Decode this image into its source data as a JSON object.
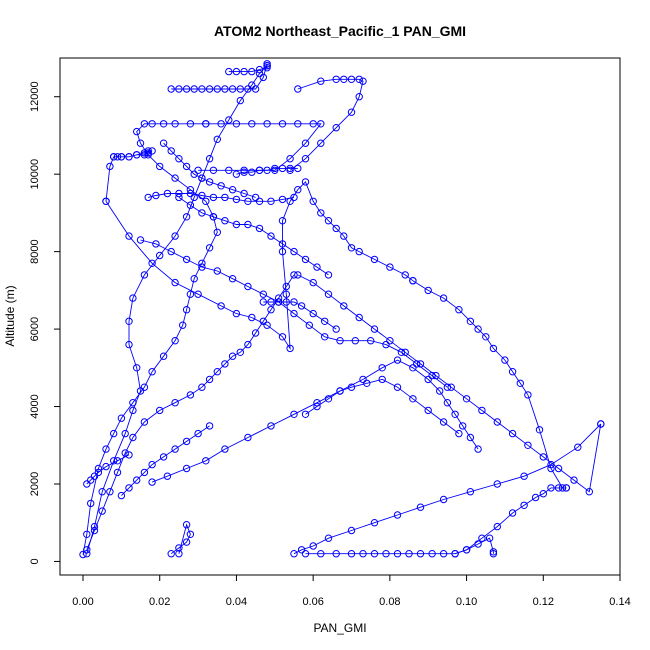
{
  "chart_data": {
    "type": "scatter",
    "title": "ATOM2 Northeast_Pacific_1 PAN_GMI",
    "xlabel": "PAN_GMI",
    "ylabel": "Altitude (m)",
    "xlim": [
      -0.006,
      0.14
    ],
    "ylim": [
      -350,
      13000
    ],
    "xticks": [
      0.0,
      0.02,
      0.04,
      0.06,
      0.08,
      0.1,
      0.12,
      0.14
    ],
    "xtick_labels": [
      "0.00",
      "0.02",
      "0.04",
      "0.06",
      "0.08",
      "0.10",
      "0.12",
      "0.14"
    ],
    "yticks": [
      0,
      2000,
      4000,
      6000,
      8000,
      10000,
      12000
    ],
    "ytick_labels": [
      "0",
      "2000",
      "4000",
      "6000",
      "8000",
      "10000",
      "12000"
    ],
    "grid": false,
    "marker": "open-circle",
    "line": true,
    "color": "#0000ff",
    "series": [
      {
        "x": [
          0.0,
          0.001,
          0.002,
          0.004,
          0.006,
          0.008,
          0.01,
          0.013,
          0.016,
          0.018,
          0.021,
          0.024,
          0.026,
          0.027,
          0.028,
          0.029,
          0.031,
          0.033,
          0.035,
          0.034,
          0.032,
          0.028,
          0.024,
          0.02,
          0.017,
          0.015,
          0.014,
          0.016,
          0.018,
          0.021,
          0.024,
          0.028,
          0.032
        ],
        "y": [
          180,
          700,
          1500,
          2400,
          2900,
          3300,
          3700,
          4100,
          4500,
          4900,
          5300,
          5700,
          6100,
          6500,
          6900,
          7300,
          7700,
          8100,
          8500,
          8900,
          9300,
          9600,
          9900,
          10200,
          10500,
          10800,
          11100,
          11300,
          11300,
          11300,
          11300,
          11300,
          11300
        ]
      },
      {
        "x": [
          0.032,
          0.036,
          0.04,
          0.044,
          0.048,
          0.052,
          0.056,
          0.06,
          0.062,
          0.058,
          0.054,
          0.05,
          0.046,
          0.042,
          0.038,
          0.034,
          0.03
        ],
        "y": [
          11300,
          11300,
          11300,
          11300,
          11300,
          11300,
          11300,
          11300,
          11300,
          10800,
          10400,
          10100,
          10100,
          10100,
          10100,
          10100,
          10100
        ]
      },
      {
        "x": [
          0.001,
          0.003,
          0.005,
          0.008,
          0.011,
          0.013,
          0.015,
          0.014,
          0.012,
          0.012,
          0.013,
          0.016,
          0.02,
          0.024,
          0.027,
          0.029,
          0.031,
          0.033,
          0.035,
          0.038,
          0.041,
          0.044,
          0.046,
          0.048
        ],
        "y": [
          200,
          900,
          1800,
          2600,
          3300,
          3900,
          4400,
          5000,
          5600,
          6200,
          6800,
          7400,
          7900,
          8400,
          8900,
          9400,
          9900,
          10400,
          10900,
          11400,
          11900,
          12300,
          12600,
          12800
        ]
      },
      {
        "x": [
          0.038,
          0.04,
          0.042,
          0.044,
          0.046,
          0.048,
          0.048,
          0.048,
          0.047,
          0.045,
          0.043,
          0.041,
          0.039,
          0.037,
          0.035,
          0.033,
          0.031,
          0.029,
          0.027,
          0.025,
          0.023
        ],
        "y": [
          12650,
          12650,
          12650,
          12650,
          12700,
          12750,
          12800,
          12850,
          12500,
          12200,
          12200,
          12200,
          12200,
          12200,
          12200,
          12200,
          12200,
          12200,
          12200,
          12200,
          12200
        ]
      },
      {
        "x": [
          0.056,
          0.062,
          0.066,
          0.068,
          0.07,
          0.072,
          0.073,
          0.072,
          0.07,
          0.066,
          0.062,
          0.058,
          0.054
        ],
        "y": [
          12200,
          12400,
          12450,
          12450,
          12450,
          12450,
          12400,
          12000,
          11600,
          11200,
          10800,
          10400,
          10100
        ]
      },
      {
        "x": [
          0.008,
          0.009,
          0.01,
          0.012,
          0.014,
          0.016,
          0.017,
          0.018,
          0.017,
          0.016,
          0.014,
          0.012,
          0.01,
          0.008,
          0.007,
          0.006
        ],
        "y": [
          10450,
          10450,
          10450,
          10450,
          10500,
          10550,
          10550,
          10600,
          10600,
          10500,
          10500,
          10450,
          10450,
          10450,
          10200,
          9300
        ]
      },
      {
        "x": [
          0.006,
          0.012,
          0.018,
          0.024,
          0.03,
          0.036,
          0.04,
          0.044,
          0.048,
          0.052,
          0.054,
          0.053,
          0.052,
          0.052,
          0.054,
          0.056,
          0.058,
          0.06,
          0.062,
          0.064,
          0.066,
          0.068,
          0.07,
          0.072,
          0.076,
          0.08,
          0.084,
          0.086
        ],
        "y": [
          9300,
          8400,
          7700,
          7200,
          6900,
          6600,
          6400,
          6300,
          6100,
          5800,
          5500,
          6900,
          8000,
          8800,
          9300,
          9600,
          9800,
          9300,
          9000,
          8800,
          8600,
          8400,
          8100,
          8000,
          7800,
          7600,
          7400,
          7250
        ]
      },
      {
        "x": [
          0.086,
          0.09,
          0.094,
          0.098,
          0.101,
          0.103,
          0.105,
          0.107,
          0.11,
          0.112,
          0.114,
          0.116,
          0.119,
          0.122,
          0.125,
          0.126
        ],
        "y": [
          7250,
          7000,
          6800,
          6500,
          6200,
          6000,
          5800,
          5500,
          5200,
          4900,
          4600,
          4300,
          3400,
          2400,
          1900,
          1900
        ]
      },
      {
        "x": [
          0.126,
          0.124,
          0.122,
          0.12,
          0.118,
          0.115,
          0.112,
          0.108,
          0.104,
          0.1,
          0.097,
          0.094,
          0.091,
          0.088,
          0.085,
          0.082,
          0.079,
          0.076,
          0.073,
          0.07,
          0.066,
          0.062,
          0.058
        ],
        "y": [
          1900,
          1900,
          1900,
          1750,
          1650,
          1450,
          1250,
          900,
          600,
          300,
          200,
          200,
          200,
          200,
          200,
          200,
          200,
          200,
          200,
          200,
          200,
          200,
          200
        ]
      },
      {
        "x": [
          0.135,
          0.129,
          0.122,
          0.115,
          0.108,
          0.101,
          0.094,
          0.088,
          0.082,
          0.076,
          0.07,
          0.064,
          0.06,
          0.057,
          0.055
        ],
        "y": [
          3550,
          2950,
          2500,
          2200,
          2000,
          1800,
          1600,
          1400,
          1200,
          1000,
          800,
          600,
          400,
          300,
          200
        ]
      },
      {
        "x": [
          0.001,
          0.003,
          0.005,
          0.007,
          0.009,
          0.011,
          0.013,
          0.016,
          0.02,
          0.024,
          0.028,
          0.031,
          0.033,
          0.035,
          0.037,
          0.039,
          0.041,
          0.043,
          0.045,
          0.047,
          0.049,
          0.051,
          0.053,
          0.055
        ],
        "y": [
          300,
          800,
          1300,
          1800,
          2300,
          2800,
          3200,
          3600,
          3900,
          4100,
          4300,
          4500,
          4700,
          4900,
          5100,
          5300,
          5400,
          5600,
          5900,
          6200,
          6500,
          6800,
          7100,
          7400
        ]
      },
      {
        "x": [
          0.056,
          0.06,
          0.064,
          0.068,
          0.072,
          0.076,
          0.08,
          0.084,
          0.088,
          0.092,
          0.096,
          0.1,
          0.104,
          0.108,
          0.112,
          0.116,
          0.12,
          0.124,
          0.128,
          0.132,
          0.135
        ],
        "y": [
          7400,
          7200,
          6900,
          6600,
          6300,
          6000,
          5700,
          5400,
          5100,
          4800,
          4500,
          4200,
          3900,
          3600,
          3300,
          3000,
          2700,
          2400,
          2100,
          1800,
          3550
        ]
      },
      {
        "x": [
          0.018,
          0.022,
          0.027,
          0.032,
          0.037,
          0.043,
          0.049,
          0.055,
          0.061,
          0.067,
          0.073,
          0.078,
          0.082,
          0.086,
          0.09,
          0.093,
          0.095,
          0.097,
          0.099,
          0.101,
          0.103
        ],
        "y": [
          2050,
          2200,
          2400,
          2600,
          2900,
          3200,
          3500,
          3800,
          4100,
          4400,
          4700,
          5000,
          5200,
          5000,
          4700,
          4400,
          4100,
          3800,
          3500,
          3200,
          2900
        ]
      },
      {
        "x": [
          0.015,
          0.019,
          0.023,
          0.027,
          0.031,
          0.035,
          0.039,
          0.043,
          0.047,
          0.051,
          0.055,
          0.059,
          0.063,
          0.067,
          0.071,
          0.075,
          0.079,
          0.083,
          0.087,
          0.091,
          0.095
        ],
        "y": [
          8300,
          8200,
          8000,
          7800,
          7600,
          7500,
          7300,
          7100,
          6900,
          6700,
          6400,
          6100,
          5800,
          5700,
          5700,
          5700,
          5600,
          5400,
          5100,
          4800,
          4500
        ]
      },
      {
        "x": [
          0.025,
          0.028,
          0.031,
          0.034,
          0.037,
          0.04,
          0.043,
          0.046,
          0.049,
          0.052,
          0.055,
          0.058,
          0.061,
          0.064
        ],
        "y": [
          9400,
          9200,
          9000,
          8900,
          8800,
          8700,
          8700,
          8600,
          8400,
          8200,
          8000,
          7800,
          7600,
          7400
        ]
      },
      {
        "x": [
          0.021,
          0.023,
          0.025,
          0.027,
          0.029,
          0.031,
          0.033,
          0.036,
          0.039,
          0.042,
          0.045
        ],
        "y": [
          10800,
          10600,
          10400,
          10200,
          10000,
          9900,
          9800,
          9700,
          9600,
          9500,
          9400
        ]
      },
      {
        "x": [
          0.017,
          0.019,
          0.022,
          0.025,
          0.028,
          0.031,
          0.034,
          0.037,
          0.04,
          0.043,
          0.046,
          0.049,
          0.052,
          0.055
        ],
        "y": [
          9400,
          9450,
          9500,
          9500,
          9500,
          9450,
          9400,
          9400,
          9350,
          9300,
          9300,
          9300,
          9350,
          9400
        ]
      },
      {
        "x": [
          0.04,
          0.042,
          0.044,
          0.046,
          0.048,
          0.05,
          0.052,
          0.054,
          0.056
        ],
        "y": [
          10000,
          10050,
          10050,
          10100,
          10100,
          10150,
          10150,
          10150,
          10150
        ]
      },
      {
        "x": [
          0.047,
          0.049,
          0.051,
          0.053,
          0.055,
          0.057,
          0.06,
          0.063,
          0.066
        ],
        "y": [
          6700,
          6700,
          6700,
          6700,
          6700,
          6600,
          6400,
          6200,
          6000
        ]
      },
      {
        "x": [
          0.097,
          0.1,
          0.103,
          0.106,
          0.107,
          0.107
        ],
        "y": [
          200,
          300,
          450,
          600,
          250,
          200
        ]
      },
      {
        "x": [
          0.023,
          0.025,
          0.027,
          0.028,
          0.027,
          0.025
        ],
        "y": [
          200,
          350,
          500,
          700,
          950,
          200
        ]
      },
      {
        "x": [
          0.001,
          0.002,
          0.003,
          0.004,
          0.006,
          0.009,
          0.012
        ],
        "y": [
          2000,
          2100,
          2200,
          2300,
          2450,
          2600,
          2750
        ]
      },
      {
        "x": [
          0.058,
          0.061,
          0.064,
          0.067,
          0.07,
          0.074,
          0.078,
          0.082,
          0.086,
          0.09,
          0.094,
          0.098
        ],
        "y": [
          3800,
          4000,
          4200,
          4400,
          4500,
          4600,
          4700,
          4500,
          4200,
          3900,
          3600,
          3300
        ]
      },
      {
        "x": [
          0.01,
          0.012,
          0.014,
          0.016,
          0.018,
          0.021,
          0.024,
          0.027,
          0.03,
          0.033
        ],
        "y": [
          1700,
          1900,
          2100,
          2300,
          2500,
          2700,
          2900,
          3100,
          3300,
          3500
        ]
      }
    ]
  }
}
